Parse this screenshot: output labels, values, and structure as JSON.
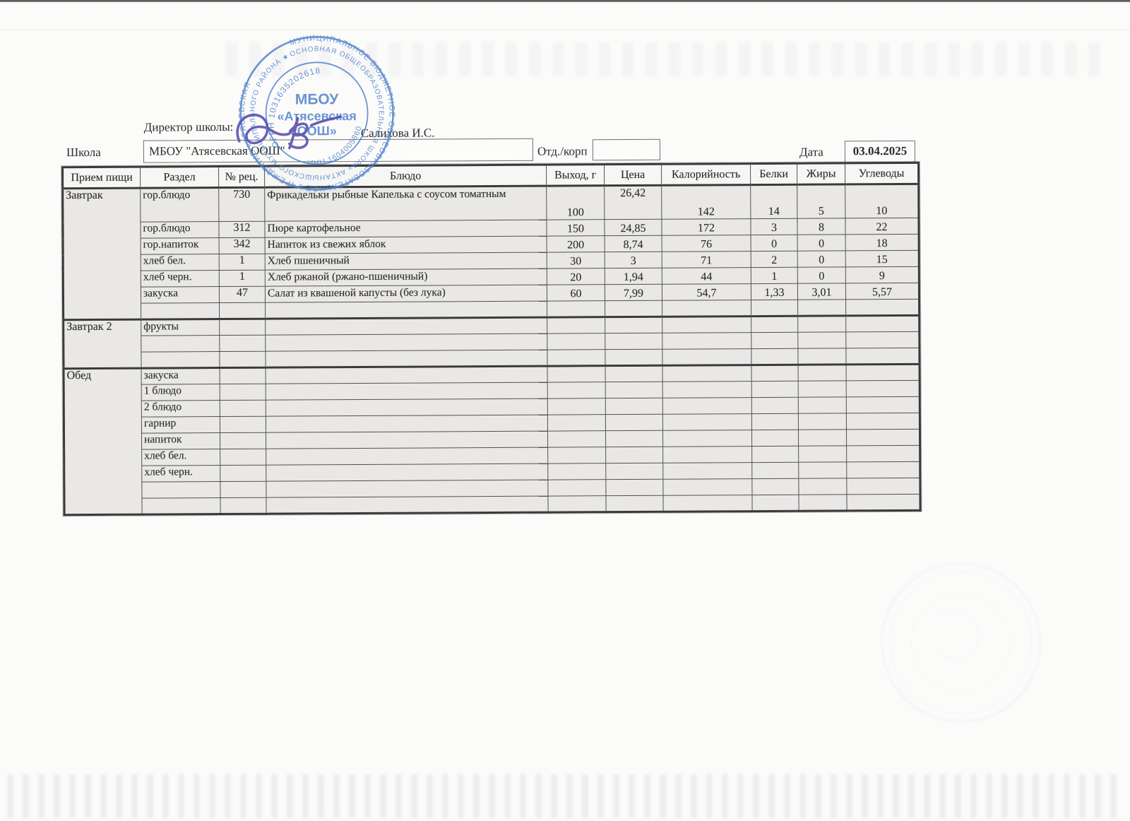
{
  "page": {
    "school_label": "Школа",
    "school_value": "МБОУ \"Атясевская ООШ\"",
    "director_label": "Директор школы:",
    "director_name": "Салихова И.С.",
    "dept_label": "Отд./корп",
    "dept_value": "",
    "date_label": "Дата",
    "date_value": "03.04.2025"
  },
  "stamp": {
    "ring_line1": "МУНИЦИПАЛЬНОЕ БЮДЖЕТНОЕ ОБЩЕОБРАЗОВАТЕЛЬНОЕ УЧРЕЖДЕНИЕ «АТЯСЕВСКАЯ",
    "ring_line2": "ОСНОВНАЯ ОБЩЕОБРАЗОВАТЕЛЬНАЯ ШКОЛА» АКТАНЫШСКОГО МУНИЦИПАЛЬНОГО РАЙОНА ★",
    "ogrn": "ОГРН 1031635202618",
    "inn": "ИНН 1604005860",
    "center_line1": "МБОУ",
    "center_line2": "«Атясевская",
    "center_line3": "ООШ»",
    "color": "#4a7ec9"
  },
  "table": {
    "headers": [
      "Прием пищи",
      "Раздел",
      "№ рец.",
      "Блюдо",
      "Выход, г",
      "Цена",
      "Калорийность",
      "Белки",
      "Жиры",
      "Углеводы"
    ],
    "sections": [
      {
        "meal": "Завтрак",
        "rows": [
          {
            "razdel": "гор.блюдо",
            "rec": "730",
            "dish": "Фрикадельки рыбные Капелька с соусом томатным",
            "out": "100",
            "price": "26,42",
            "cal": "142",
            "prot": "14",
            "fat": "5",
            "carb": "10",
            "tall": true,
            "price_top": true
          },
          {
            "razdel": "гор.блюдо",
            "rec": "312",
            "dish": "Пюре картофельное",
            "out": "150",
            "price": "24,85",
            "cal": "172",
            "prot": "3",
            "fat": "8",
            "carb": "22"
          },
          {
            "razdel": "гор.напиток",
            "rec": "342",
            "dish": "Напиток из свежих яблок",
            "out": "200",
            "price": "8,74",
            "cal": "76",
            "prot": "0",
            "fat": "0",
            "carb": "18"
          },
          {
            "razdel": "хлеб бел.",
            "rec": "1",
            "dish": "Хлеб пшеничный",
            "out": "30",
            "price": "3",
            "cal": "71",
            "prot": "2",
            "fat": "0",
            "carb": "15"
          },
          {
            "razdel": "хлеб черн.",
            "rec": "1",
            "dish": "Хлеб ржаной (ржано-пшеничный)",
            "out": "20",
            "price": "1,94",
            "cal": "44",
            "prot": "1",
            "fat": "0",
            "carb": "9"
          },
          {
            "razdel": "закуска",
            "rec": "47",
            "dish": "Салат из квашеной капусты (без лука)",
            "out": "60",
            "price": "7,99",
            "cal": "54,7",
            "prot": "1,33",
            "fat": "3,01",
            "carb": "5,57"
          },
          {
            "razdel": "",
            "rec": "",
            "dish": "",
            "out": "",
            "price": "",
            "cal": "",
            "prot": "",
            "fat": "",
            "carb": ""
          }
        ]
      },
      {
        "meal": "Завтрак 2",
        "rows": [
          {
            "razdel": "фрукты",
            "rec": "",
            "dish": "",
            "out": "",
            "price": "",
            "cal": "",
            "prot": "",
            "fat": "",
            "carb": ""
          },
          {
            "razdel": "",
            "rec": "",
            "dish": "",
            "out": "",
            "price": "",
            "cal": "",
            "prot": "",
            "fat": "",
            "carb": ""
          },
          {
            "razdel": "",
            "rec": "",
            "dish": "",
            "out": "",
            "price": "",
            "cal": "",
            "prot": "",
            "fat": "",
            "carb": ""
          }
        ]
      },
      {
        "meal": "Обед",
        "rows": [
          {
            "razdel": "закуска",
            "rec": "",
            "dish": "",
            "out": "",
            "price": "",
            "cal": "",
            "prot": "",
            "fat": "",
            "carb": ""
          },
          {
            "razdel": "1 блюдо",
            "rec": "",
            "dish": "",
            "out": "",
            "price": "",
            "cal": "",
            "prot": "",
            "fat": "",
            "carb": ""
          },
          {
            "razdel": "2 блюдо",
            "rec": "",
            "dish": "",
            "out": "",
            "price": "",
            "cal": "",
            "prot": "",
            "fat": "",
            "carb": ""
          },
          {
            "razdel": "гарнир",
            "rec": "",
            "dish": "",
            "out": "",
            "price": "",
            "cal": "",
            "prot": "",
            "fat": "",
            "carb": ""
          },
          {
            "razdel": "напиток",
            "rec": "",
            "dish": "",
            "out": "",
            "price": "",
            "cal": "",
            "prot": "",
            "fat": "",
            "carb": ""
          },
          {
            "razdel": "хлеб бел.",
            "rec": "",
            "dish": "",
            "out": "",
            "price": "",
            "cal": "",
            "prot": "",
            "fat": "",
            "carb": ""
          },
          {
            "razdel": "хлеб черн.",
            "rec": "",
            "dish": "",
            "out": "",
            "price": "",
            "cal": "",
            "prot": "",
            "fat": "",
            "carb": ""
          },
          {
            "razdel": "",
            "rec": "",
            "dish": "",
            "out": "",
            "price": "",
            "cal": "",
            "prot": "",
            "fat": "",
            "carb": ""
          },
          {
            "razdel": "",
            "rec": "",
            "dish": "",
            "out": "",
            "price": "",
            "cal": "",
            "prot": "",
            "fat": "",
            "carb": ""
          }
        ]
      }
    ]
  }
}
